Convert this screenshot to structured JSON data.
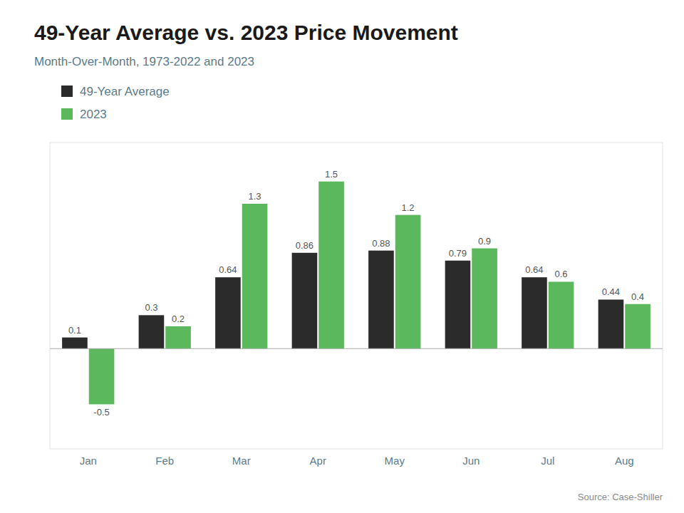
{
  "chart_data": {
    "type": "bar",
    "title": "49-Year Average vs. 2023 Price Movement",
    "subtitle": "Month-Over-Month, 1973-2022 and 2023",
    "source": "Source: Case-Shiller",
    "categories": [
      "Jan",
      "Feb",
      "Mar",
      "Apr",
      "May",
      "Jun",
      "Jul",
      "Aug"
    ],
    "series": [
      {
        "name": "49-Year Average",
        "color": "#2b2b2b",
        "values": [
          0.1,
          0.3,
          0.64,
          0.86,
          0.88,
          0.79,
          0.64,
          0.44
        ]
      },
      {
        "name": "2023",
        "color": "#5cb85c",
        "values": [
          -0.5,
          0.2,
          1.3,
          1.5,
          1.2,
          0.9,
          0.6,
          0.4
        ]
      }
    ],
    "ylim": [
      -0.9,
      1.85
    ],
    "grid": false,
    "legend": "top-left",
    "data_labels": true,
    "tick_labels": "x"
  }
}
